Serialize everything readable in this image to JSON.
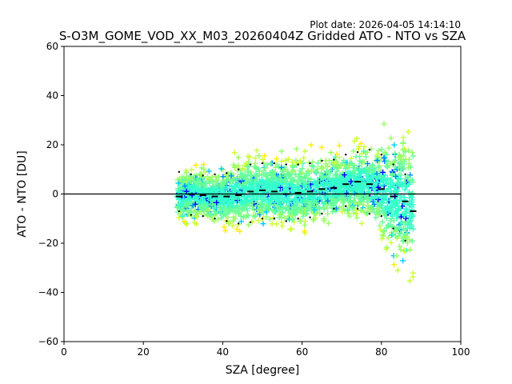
{
  "chart_data": {
    "type": "scatter",
    "title": "S-O3M_GOME_VOD_XX_M03_20260404Z Gridded ATO - NTO vs SZA",
    "plot_date": "Plot date: 2026-04-05 14:14:10",
    "xlabel": "SZA [degree]",
    "ylabel": "ATO - NTO [DU]",
    "xlim": [
      0,
      100
    ],
    "ylim": [
      -60,
      60
    ],
    "xticks": [
      "0",
      "20",
      "40",
      "60",
      "80",
      "100"
    ],
    "yticks": [
      "−60",
      "−40",
      "−20",
      "0",
      "20",
      "40",
      "60"
    ],
    "grid": false,
    "legend": "none",
    "marker": "plus",
    "reference_line_y": 0,
    "scatter_x_range": [
      28.5,
      88
    ],
    "scatter_colors": [
      "#0000ff",
      "#0088ff",
      "#00ccff",
      "#33ffcc",
      "#66ff99",
      "#99ff66",
      "#ccff33",
      "#ffee00"
    ],
    "mean_bias": [
      {
        "x": 29,
        "y": -1.0
      },
      {
        "x": 32,
        "y": 0.0
      },
      {
        "x": 35,
        "y": -0.5
      },
      {
        "x": 38,
        "y": -1.0
      },
      {
        "x": 41,
        "y": -1.0
      },
      {
        "x": 44,
        "y": -0.5
      },
      {
        "x": 47,
        "y": 1.0
      },
      {
        "x": 50,
        "y": 1.5
      },
      {
        "x": 53,
        "y": 1.0
      },
      {
        "x": 56,
        "y": 0.0
      },
      {
        "x": 59,
        "y": 0.5
      },
      {
        "x": 62,
        "y": 1.0
      },
      {
        "x": 65,
        "y": 2.0
      },
      {
        "x": 68,
        "y": 2.5
      },
      {
        "x": 71,
        "y": 4.0
      },
      {
        "x": 74,
        "y": 5.0
      },
      {
        "x": 77,
        "y": 4.0
      },
      {
        "x": 80,
        "y": 2.0
      },
      {
        "x": 83,
        "y": -1.0
      },
      {
        "x": 86,
        "y": -3.0
      },
      {
        "x": 88,
        "y": -7.0
      }
    ],
    "upper_band": [
      {
        "x": 29,
        "y": 9.0
      },
      {
        "x": 32,
        "y": 8.0
      },
      {
        "x": 35,
        "y": 7.5
      },
      {
        "x": 38,
        "y": 8.0
      },
      {
        "x": 41,
        "y": 8.5
      },
      {
        "x": 44,
        "y": 10.0
      },
      {
        "x": 47,
        "y": 12.0
      },
      {
        "x": 50,
        "y": 12.5
      },
      {
        "x": 53,
        "y": 12.5
      },
      {
        "x": 56,
        "y": 12.0
      },
      {
        "x": 59,
        "y": 12.0
      },
      {
        "x": 62,
        "y": 12.5
      },
      {
        "x": 65,
        "y": 13.5
      },
      {
        "x": 68,
        "y": 14.0
      },
      {
        "x": 71,
        "y": 16.0
      },
      {
        "x": 74,
        "y": 17.0
      },
      {
        "x": 77,
        "y": 18.0
      },
      {
        "x": 80,
        "y": 16.0
      },
      {
        "x": 83,
        "y": 12.0
      },
      {
        "x": 86,
        "y": 8.0
      }
    ],
    "lower_band": [
      {
        "x": 29,
        "y": -7.0
      },
      {
        "x": 32,
        "y": -8.5
      },
      {
        "x": 35,
        "y": -9.0
      },
      {
        "x": 38,
        "y": -10.0
      },
      {
        "x": 41,
        "y": -11.0
      },
      {
        "x": 44,
        "y": -12.0
      },
      {
        "x": 47,
        "y": -11.5
      },
      {
        "x": 50,
        "y": -10.0
      },
      {
        "x": 53,
        "y": -10.0
      },
      {
        "x": 56,
        "y": -11.0
      },
      {
        "x": 59,
        "y": -10.0
      },
      {
        "x": 62,
        "y": -9.5
      },
      {
        "x": 65,
        "y": -8.0
      },
      {
        "x": 68,
        "y": -6.0
      },
      {
        "x": 71,
        "y": -5.0
      },
      {
        "x": 74,
        "y": -6.0
      },
      {
        "x": 77,
        "y": -8.0
      },
      {
        "x": 80,
        "y": -9.0
      },
      {
        "x": 83,
        "y": -14.0
      },
      {
        "x": 86,
        "y": -19.0
      }
    ]
  }
}
